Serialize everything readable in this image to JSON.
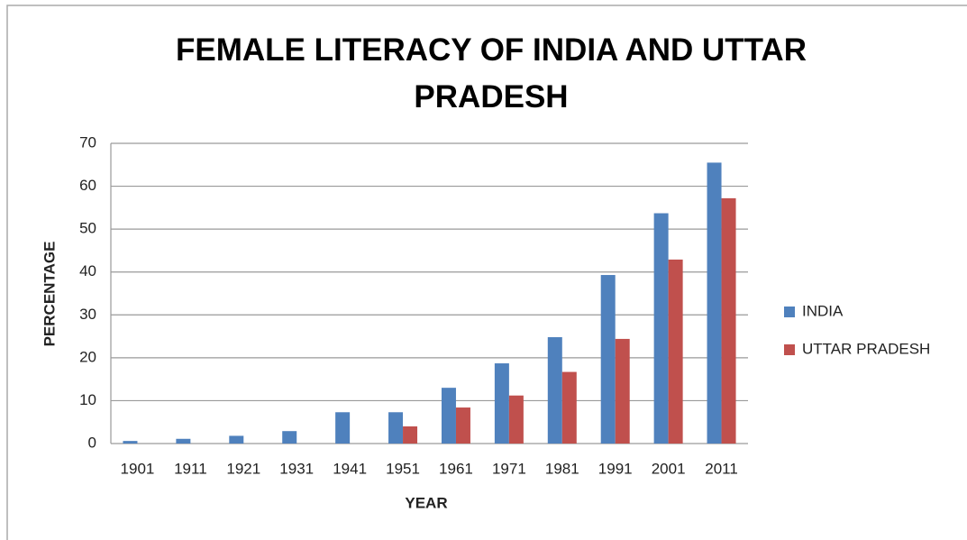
{
  "chart_data": {
    "type": "bar",
    "title": "FEMALE LITERACY OF INDIA AND UTTAR PRADESH",
    "x_label": "YEAR",
    "y_label": "PERCENTAGE",
    "categories": [
      "1901",
      "1911",
      "1921",
      "1931",
      "1941",
      "1951",
      "1961",
      "1971",
      "1981",
      "1991",
      "2001",
      "2011"
    ],
    "series": [
      {
        "name": "INDIA",
        "color": "#4f81bd",
        "values": [
          0.6,
          1.1,
          1.8,
          2.9,
          7.3,
          7.3,
          13,
          18.7,
          24.8,
          39.3,
          53.7,
          65.5
        ]
      },
      {
        "name": "UTTAR PRADESH",
        "color": "#c0504d",
        "values": [
          null,
          null,
          null,
          null,
          null,
          4,
          8.4,
          11.2,
          16.7,
          24.4,
          42.9,
          57.2
        ]
      }
    ],
    "ylim": [
      0,
      70
    ],
    "yticks": [
      0,
      10,
      20,
      30,
      40,
      50,
      60,
      70
    ],
    "grid": true,
    "legend": "right"
  }
}
